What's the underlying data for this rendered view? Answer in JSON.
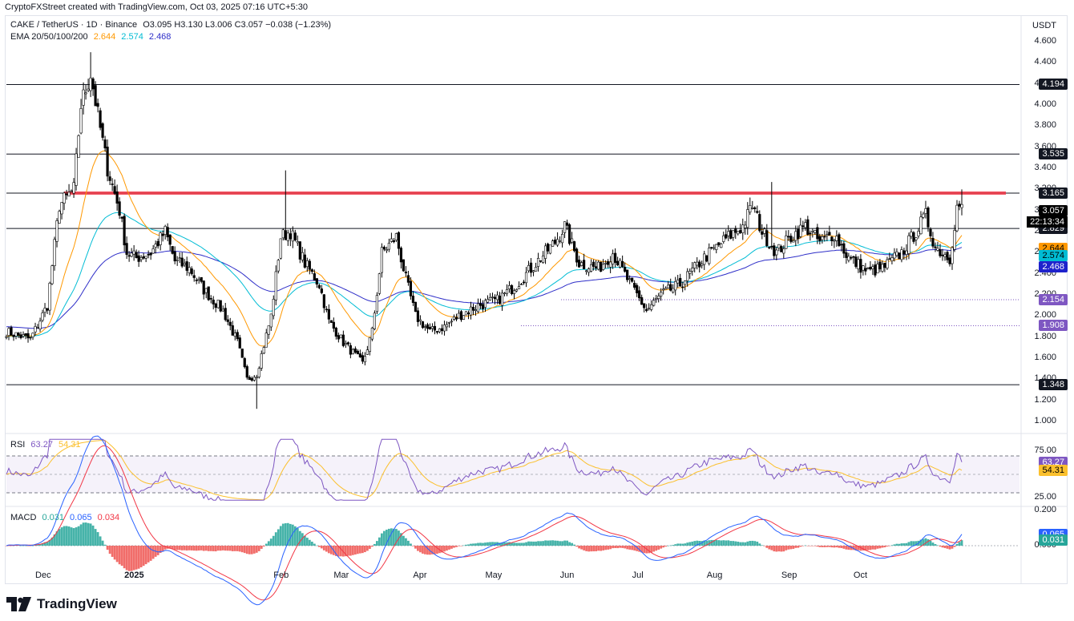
{
  "credit": "CryptoFXStreet created with TradingView.com, Oct 03, 2025 07:16 UTC+5:30",
  "legend": {
    "symbol": "CAKE / TetherUS · 1D · Binance",
    "ohlc": "O3.095  H3.130  L3.006  C3.057  −0.038 (−1.23%)",
    "ema_label": "EMA 20/50/100/200",
    "ema_values": [
      "2.644",
      "2.574",
      "2.468"
    ],
    "rsi_label": "RSI",
    "rsi_values": [
      "63.27",
      "54.31"
    ],
    "macd_label": "MACD",
    "macd_values": [
      "0.031",
      "0.065",
      "0.034"
    ]
  },
  "currency": "USDT",
  "colors": {
    "up": "#ffffff",
    "down": "#000000",
    "ema_orange": "#ff9800",
    "ema_cyan": "#00bcd4",
    "ema_navy": "#2e2ec8",
    "rsi": "#7e57c2",
    "rsi_ma": "#fbc02d",
    "macd_pos": "#26a69a",
    "macd_neg": "#ef5350",
    "macd_line": "#2962ff",
    "signal_line": "#f23645",
    "zone": "#f23645"
  },
  "chart_data": [
    {
      "type": "candlestick",
      "title": "CAKE / TetherUS · 1D · Binance",
      "ylim": [
        1.0,
        4.6
      ],
      "y_ticks": [
        "4.600",
        "4.400",
        "4.200",
        "4.000",
        "3.800",
        "3.600",
        "3.400",
        "3.200",
        "3.000",
        "2.800",
        "2.600",
        "2.400",
        "2.200",
        "2.000",
        "1.800",
        "1.600",
        "1.400",
        "1.200",
        "1.000"
      ],
      "x_ticks": [
        "Dec",
        "2025",
        "Feb",
        "Mar",
        "Apr",
        "May",
        "Jun",
        "Jul",
        "Aug",
        "Sep",
        "Oct"
      ],
      "price_waypoints": [
        [
          0,
          1.85
        ],
        [
          10,
          1.78
        ],
        [
          17,
          2.1
        ],
        [
          22,
          3.05
        ],
        [
          28,
          3.2
        ],
        [
          31,
          4.0
        ],
        [
          35,
          4.3
        ],
        [
          38,
          3.9
        ],
        [
          42,
          3.4
        ],
        [
          47,
          3.0
        ],
        [
          50,
          2.6
        ],
        [
          54,
          2.55
        ],
        [
          60,
          2.6
        ],
        [
          66,
          2.8
        ],
        [
          70,
          2.52
        ],
        [
          76,
          2.45
        ],
        [
          82,
          2.25
        ],
        [
          90,
          2.05
        ],
        [
          96,
          1.75
        ],
        [
          100,
          1.4
        ],
        [
          104,
          1.45
        ],
        [
          110,
          2.0
        ],
        [
          114,
          2.75
        ],
        [
          118,
          2.8
        ],
        [
          124,
          2.5
        ],
        [
          130,
          2.3
        ],
        [
          134,
          1.95
        ],
        [
          140,
          1.75
        ],
        [
          148,
          1.55
        ],
        [
          152,
          1.85
        ],
        [
          156,
          2.6
        ],
        [
          162,
          2.75
        ],
        [
          166,
          2.35
        ],
        [
          170,
          2.0
        ],
        [
          176,
          1.85
        ],
        [
          182,
          1.9
        ],
        [
          188,
          2.0
        ],
        [
          196,
          2.1
        ],
        [
          204,
          2.15
        ],
        [
          212,
          2.3
        ],
        [
          222,
          2.55
        ],
        [
          228,
          2.7
        ],
        [
          232,
          2.85
        ],
        [
          238,
          2.5
        ],
        [
          246,
          2.45
        ],
        [
          252,
          2.6
        ],
        [
          258,
          2.35
        ],
        [
          266,
          2.05
        ],
        [
          272,
          2.2
        ],
        [
          280,
          2.3
        ],
        [
          290,
          2.55
        ],
        [
          300,
          2.75
        ],
        [
          306,
          2.85
        ],
        [
          310,
          3.05
        ],
        [
          314,
          2.8
        ],
        [
          320,
          2.6
        ],
        [
          326,
          2.75
        ],
        [
          332,
          2.85
        ],
        [
          338,
          2.7
        ],
        [
          344,
          2.78
        ],
        [
          350,
          2.55
        ],
        [
          358,
          2.42
        ],
        [
          364,
          2.45
        ],
        [
          372,
          2.6
        ],
        [
          378,
          2.8
        ],
        [
          382,
          2.95
        ],
        [
          386,
          2.65
        ],
        [
          392,
          2.55
        ],
        [
          395,
          3.03
        ],
        [
          397,
          3.06
        ]
      ],
      "last_close": 3.057,
      "high_wick": 4.5,
      "low_wick": 1.12,
      "ema_values": {
        "ema20": 2.644,
        "ema50": 2.574,
        "ema200": 2.468
      },
      "horizontal_levels": [
        "4.194",
        "3.535",
        "3.165",
        "2.829",
        "1.348"
      ],
      "dotted_levels": [
        "2.154",
        "1.908"
      ],
      "resistance_zone": [
        3.15,
        3.18
      ],
      "countdown": "22:13:34"
    },
    {
      "type": "line",
      "title": "RSI",
      "ylim": [
        20,
        95
      ],
      "y_ticks": [
        "75.00",
        "25.00"
      ],
      "bands": [
        70,
        30
      ],
      "last_values": {
        "rsi": 63.27,
        "rsi_ma": 54.31
      }
    },
    {
      "type": "bar",
      "title": "MACD",
      "ylim": [
        -0.2,
        0.24
      ],
      "y_ticks": [
        "0.200",
        "0.000"
      ],
      "last_values": {
        "histogram": 0.031,
        "macd": 0.065,
        "signal": 0.034
      }
    }
  ]
}
